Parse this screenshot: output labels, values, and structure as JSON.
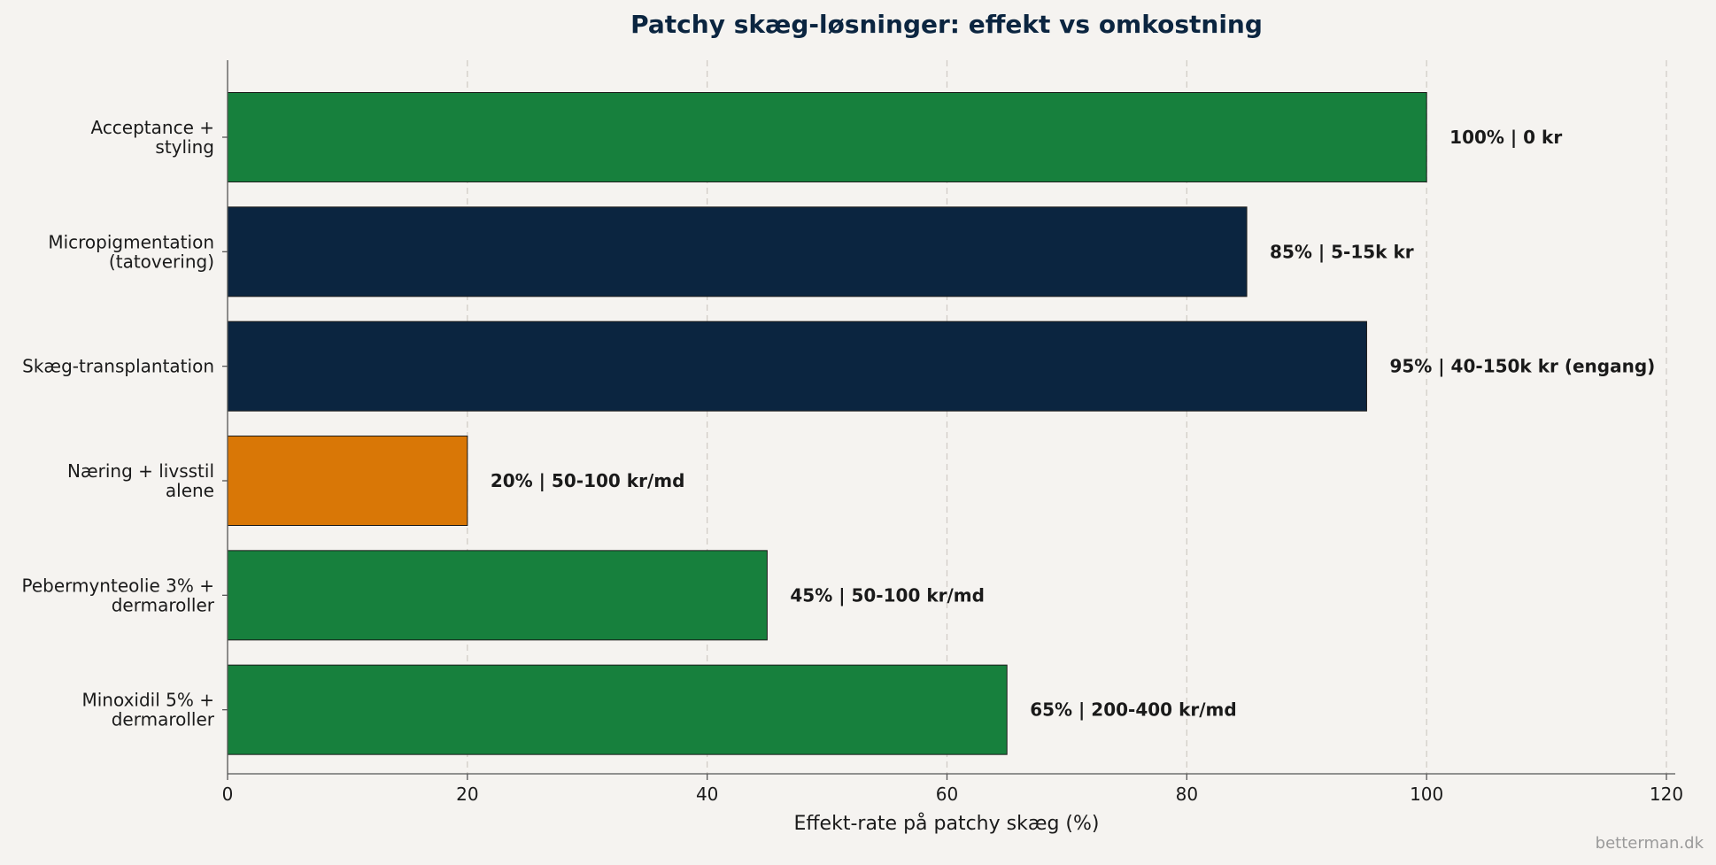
{
  "chart_data": {
    "type": "bar",
    "orientation": "horizontal",
    "title": "Patchy skæg-løsninger: effekt vs omkostning",
    "xlabel": "Effekt-rate på patchy skæg (%)",
    "ylabel": "",
    "xlim": [
      0,
      120
    ],
    "xticks": [
      0,
      20,
      40,
      60,
      80,
      100,
      120
    ],
    "grid": "vertical-dashed",
    "categories": [
      [
        "Acceptance +",
        "styling"
      ],
      [
        "Micropigmentation",
        "(tatovering)"
      ],
      [
        "Skæg-transplantation"
      ],
      [
        "Næring + livsstil",
        "alene"
      ],
      [
        "Pebermynteolie 3% +",
        "dermaroller"
      ],
      [
        "Minoxidil 5% +",
        "dermaroller"
      ]
    ],
    "values": [
      100,
      85,
      95,
      20,
      45,
      65
    ],
    "labels": [
      "100%  |  0 kr",
      "85%  |  5-15k kr",
      "95%  |  40-150k kr (engang)",
      "20%  |  50-100 kr/md",
      "45%  |  50-100 kr/md",
      "65%  |  200-400 kr/md"
    ],
    "colors": [
      "#17803d",
      "#0b2540",
      "#0b2540",
      "#d97706",
      "#17803d",
      "#17803d"
    ]
  },
  "watermark": "betterman.dk"
}
